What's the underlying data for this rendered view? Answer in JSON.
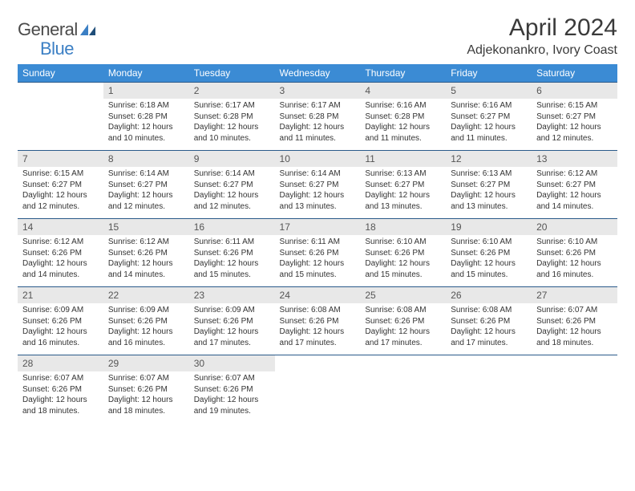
{
  "logo": {
    "word1": "General",
    "word2": "Blue"
  },
  "title": "April 2024",
  "location": "Adjekonankro, Ivory Coast",
  "colors": {
    "header_bg": "#3b8bd4",
    "header_text": "#ffffff",
    "daynum_bg": "#e8e8e8",
    "row_border": "#2a5a8a",
    "text": "#333333"
  },
  "font": {
    "base_size_pt": 10,
    "title_size_pt": 30,
    "location_size_pt": 16,
    "dow_size_pt": 12
  },
  "days_of_week": [
    "Sunday",
    "Monday",
    "Tuesday",
    "Wednesday",
    "Thursday",
    "Friday",
    "Saturday"
  ],
  "weeks": [
    [
      null,
      {
        "n": "1",
        "sunrise": "6:18 AM",
        "sunset": "6:28 PM",
        "daylight": "12 hours and 10 minutes."
      },
      {
        "n": "2",
        "sunrise": "6:17 AM",
        "sunset": "6:28 PM",
        "daylight": "12 hours and 10 minutes."
      },
      {
        "n": "3",
        "sunrise": "6:17 AM",
        "sunset": "6:28 PM",
        "daylight": "12 hours and 11 minutes."
      },
      {
        "n": "4",
        "sunrise": "6:16 AM",
        "sunset": "6:28 PM",
        "daylight": "12 hours and 11 minutes."
      },
      {
        "n": "5",
        "sunrise": "6:16 AM",
        "sunset": "6:27 PM",
        "daylight": "12 hours and 11 minutes."
      },
      {
        "n": "6",
        "sunrise": "6:15 AM",
        "sunset": "6:27 PM",
        "daylight": "12 hours and 12 minutes."
      }
    ],
    [
      {
        "n": "7",
        "sunrise": "6:15 AM",
        "sunset": "6:27 PM",
        "daylight": "12 hours and 12 minutes."
      },
      {
        "n": "8",
        "sunrise": "6:14 AM",
        "sunset": "6:27 PM",
        "daylight": "12 hours and 12 minutes."
      },
      {
        "n": "9",
        "sunrise": "6:14 AM",
        "sunset": "6:27 PM",
        "daylight": "12 hours and 12 minutes."
      },
      {
        "n": "10",
        "sunrise": "6:14 AM",
        "sunset": "6:27 PM",
        "daylight": "12 hours and 13 minutes."
      },
      {
        "n": "11",
        "sunrise": "6:13 AM",
        "sunset": "6:27 PM",
        "daylight": "12 hours and 13 minutes."
      },
      {
        "n": "12",
        "sunrise": "6:13 AM",
        "sunset": "6:27 PM",
        "daylight": "12 hours and 13 minutes."
      },
      {
        "n": "13",
        "sunrise": "6:12 AM",
        "sunset": "6:27 PM",
        "daylight": "12 hours and 14 minutes."
      }
    ],
    [
      {
        "n": "14",
        "sunrise": "6:12 AM",
        "sunset": "6:26 PM",
        "daylight": "12 hours and 14 minutes."
      },
      {
        "n": "15",
        "sunrise": "6:12 AM",
        "sunset": "6:26 PM",
        "daylight": "12 hours and 14 minutes."
      },
      {
        "n": "16",
        "sunrise": "6:11 AM",
        "sunset": "6:26 PM",
        "daylight": "12 hours and 15 minutes."
      },
      {
        "n": "17",
        "sunrise": "6:11 AM",
        "sunset": "6:26 PM",
        "daylight": "12 hours and 15 minutes."
      },
      {
        "n": "18",
        "sunrise": "6:10 AM",
        "sunset": "6:26 PM",
        "daylight": "12 hours and 15 minutes."
      },
      {
        "n": "19",
        "sunrise": "6:10 AM",
        "sunset": "6:26 PM",
        "daylight": "12 hours and 15 minutes."
      },
      {
        "n": "20",
        "sunrise": "6:10 AM",
        "sunset": "6:26 PM",
        "daylight": "12 hours and 16 minutes."
      }
    ],
    [
      {
        "n": "21",
        "sunrise": "6:09 AM",
        "sunset": "6:26 PM",
        "daylight": "12 hours and 16 minutes."
      },
      {
        "n": "22",
        "sunrise": "6:09 AM",
        "sunset": "6:26 PM",
        "daylight": "12 hours and 16 minutes."
      },
      {
        "n": "23",
        "sunrise": "6:09 AM",
        "sunset": "6:26 PM",
        "daylight": "12 hours and 17 minutes."
      },
      {
        "n": "24",
        "sunrise": "6:08 AM",
        "sunset": "6:26 PM",
        "daylight": "12 hours and 17 minutes."
      },
      {
        "n": "25",
        "sunrise": "6:08 AM",
        "sunset": "6:26 PM",
        "daylight": "12 hours and 17 minutes."
      },
      {
        "n": "26",
        "sunrise": "6:08 AM",
        "sunset": "6:26 PM",
        "daylight": "12 hours and 17 minutes."
      },
      {
        "n": "27",
        "sunrise": "6:07 AM",
        "sunset": "6:26 PM",
        "daylight": "12 hours and 18 minutes."
      }
    ],
    [
      {
        "n": "28",
        "sunrise": "6:07 AM",
        "sunset": "6:26 PM",
        "daylight": "12 hours and 18 minutes."
      },
      {
        "n": "29",
        "sunrise": "6:07 AM",
        "sunset": "6:26 PM",
        "daylight": "12 hours and 18 minutes."
      },
      {
        "n": "30",
        "sunrise": "6:07 AM",
        "sunset": "6:26 PM",
        "daylight": "12 hours and 19 minutes."
      },
      null,
      null,
      null,
      null
    ]
  ],
  "labels": {
    "sunrise": "Sunrise:",
    "sunset": "Sunset:",
    "daylight": "Daylight:"
  }
}
